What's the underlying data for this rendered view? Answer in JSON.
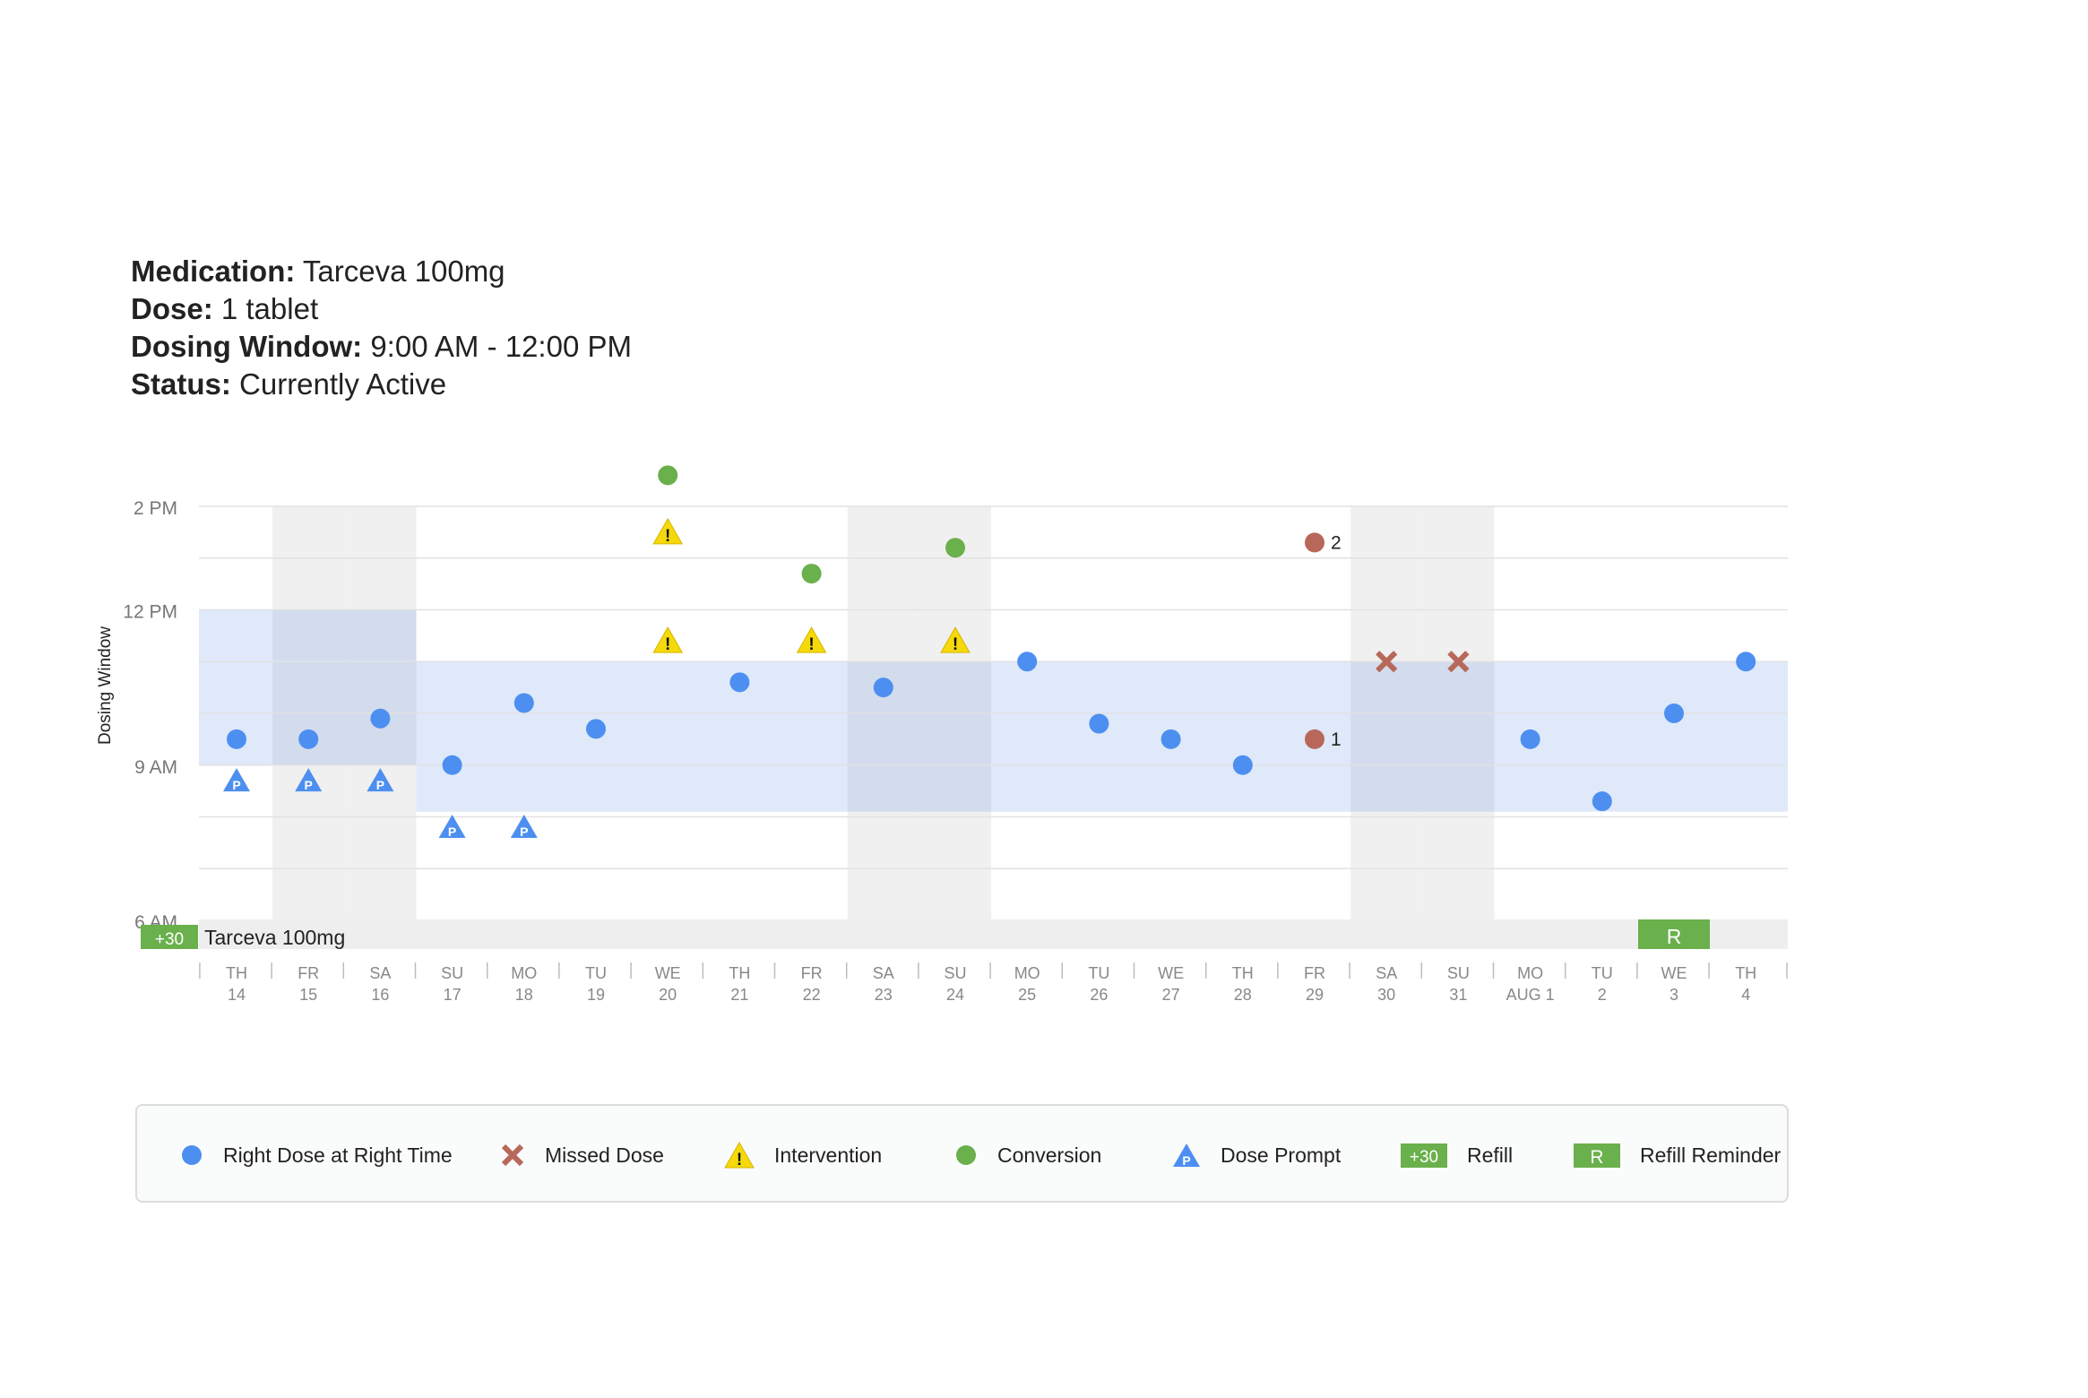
{
  "header": {
    "medication_label": "Medication:",
    "medication": "Tarceva 100mg",
    "dose_label": "Dose:",
    "dose": "1 tablet",
    "window_label": "Dosing Window:",
    "window": "9:00 AM - 12:00 PM",
    "status_label": "Status:",
    "status": "Currently Active"
  },
  "colors": {
    "dose": "#4d8ff0",
    "missed": "#b8685a",
    "intervention": "#f5d90a",
    "conversion": "#6ab04c",
    "prompt": "#4d8ff0",
    "refill": "#6ab04c",
    "window_band": "#dfeafb",
    "weekend": "#f0f0f0"
  },
  "legend": [
    {
      "icon": "dose-circle-icon",
      "label": "Right Dose at Right Time"
    },
    {
      "icon": "missed-x-icon",
      "label": "Missed Dose"
    },
    {
      "icon": "intervention-warning-icon",
      "label": "Intervention"
    },
    {
      "icon": "conversion-circle-icon",
      "label": "Conversion"
    },
    {
      "icon": "dose-prompt-icon",
      "label": "Dose Prompt",
      "glyph": "P"
    },
    {
      "icon": "refill-badge-icon",
      "label": "Refill",
      "glyph": "+30"
    },
    {
      "icon": "refill-reminder-icon",
      "label": "Refill Reminder",
      "glyph": "R"
    }
  ],
  "chart_data": {
    "type": "scatter",
    "ylabel": "Dosing Window",
    "y_ticks": [
      {
        "label": "2 PM",
        "value": 14
      },
      {
        "label": "12 PM",
        "value": 12
      },
      {
        "label": "9 AM",
        "value": 9
      },
      {
        "label": "6 AM",
        "value": 6
      }
    ],
    "ylim": [
      6,
      14
    ],
    "dosing_window": [
      9,
      12
    ],
    "days": [
      {
        "dow": "TH",
        "date": "14"
      },
      {
        "dow": "FR",
        "date": "15"
      },
      {
        "dow": "SA",
        "date": "16"
      },
      {
        "dow": "SU",
        "date": "17"
      },
      {
        "dow": "MO",
        "date": "18"
      },
      {
        "dow": "TU",
        "date": "19"
      },
      {
        "dow": "WE",
        "date": "20"
      },
      {
        "dow": "TH",
        "date": "21"
      },
      {
        "dow": "FR",
        "date": "22"
      },
      {
        "dow": "SA",
        "date": "23"
      },
      {
        "dow": "SU",
        "date": "24"
      },
      {
        "dow": "MO",
        "date": "25"
      },
      {
        "dow": "TU",
        "date": "26"
      },
      {
        "dow": "WE",
        "date": "27"
      },
      {
        "dow": "TH",
        "date": "28"
      },
      {
        "dow": "FR",
        "date": "29"
      },
      {
        "dow": "SA",
        "date": "30"
      },
      {
        "dow": "SU",
        "date": "31"
      },
      {
        "dow": "MO",
        "date": "AUG 1"
      },
      {
        "dow": "TU",
        "date": "2"
      },
      {
        "dow": "WE",
        "date": "3"
      },
      {
        "dow": "TH",
        "date": "4"
      }
    ],
    "shaded_days": [
      "FR 15",
      "SA 16",
      "SA 23",
      "SU 24",
      "SA 30",
      "SU 31"
    ],
    "series": [
      {
        "name": "Right Dose at Right Time",
        "marker": "dose",
        "points": [
          {
            "day": "14",
            "time": 9.5
          },
          {
            "day": "15",
            "time": 9.5
          },
          {
            "day": "16",
            "time": 9.9
          },
          {
            "day": "17",
            "time": 9.0
          },
          {
            "day": "18",
            "time": 10.2
          },
          {
            "day": "19",
            "time": 9.7
          },
          {
            "day": "21",
            "time": 10.6
          },
          {
            "day": "23",
            "time": 10.5
          },
          {
            "day": "25",
            "time": 11.0
          },
          {
            "day": "26",
            "time": 9.8
          },
          {
            "day": "27",
            "time": 9.5
          },
          {
            "day": "28",
            "time": 9.0
          },
          {
            "day": "AUG 1",
            "time": 9.5
          },
          {
            "day": "2",
            "time": 8.3
          },
          {
            "day": "3",
            "time": 10.0
          },
          {
            "day": "4",
            "time": 11.0
          }
        ]
      },
      {
        "name": "Missed Dose",
        "marker": "missed",
        "points": [
          {
            "day": "30",
            "time": 11.0
          },
          {
            "day": "31",
            "time": 11.0
          }
        ]
      },
      {
        "name": "Intervention",
        "marker": "intervention",
        "points": [
          {
            "day": "20",
            "time": 13.5
          },
          {
            "day": "20",
            "time": 11.4
          },
          {
            "day": "22",
            "time": 11.4
          },
          {
            "day": "24",
            "time": 11.4
          }
        ]
      },
      {
        "name": "Conversion",
        "marker": "conversion",
        "points": [
          {
            "day": "20",
            "time": 14.6
          },
          {
            "day": "22",
            "time": 12.7
          },
          {
            "day": "24",
            "time": 13.2
          }
        ]
      },
      {
        "name": "Dose Prompt",
        "marker": "prompt",
        "points": [
          {
            "day": "14",
            "time": 8.7
          },
          {
            "day": "15",
            "time": 8.7
          },
          {
            "day": "16",
            "time": 8.7
          },
          {
            "day": "17",
            "time": 7.8
          },
          {
            "day": "18",
            "time": 7.8
          }
        ]
      },
      {
        "marker": "numbered",
        "points": [
          {
            "day": "29",
            "time": 9.5,
            "label": "1"
          },
          {
            "day": "29",
            "time": 13.3,
            "label": "2"
          }
        ]
      }
    ],
    "refill_bar": {
      "badge": "+30",
      "label": "Tarceva 100mg",
      "reminder_day": "3",
      "reminder_glyph": "R"
    }
  }
}
